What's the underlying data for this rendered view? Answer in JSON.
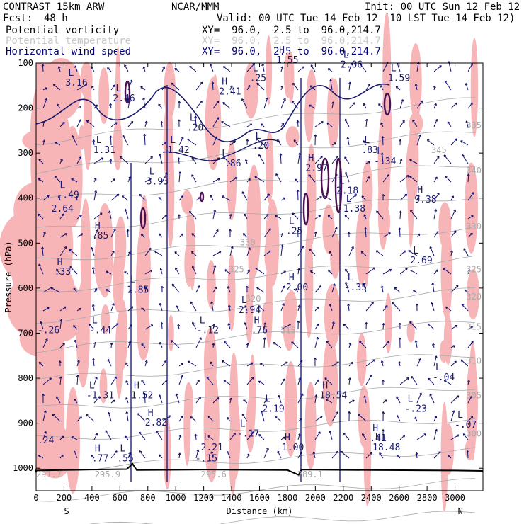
{
  "header": {
    "model": "CONTRAST 15km ARW",
    "org": "NCAR/MMM",
    "init": "Init: 00 UTC Sun 12 Feb 12",
    "fcst_label": "Fcst:",
    "fcst_value": "48 h",
    "valid": "Valid: 00 UTC Tue 14 Feb 12 (10 LST Tue 14 Feb 12)"
  },
  "fields": [
    {
      "name": "Potential vorticity",
      "xy": "XY=  96.0,  2.5 to  96.0,214.7",
      "color": "#000000"
    },
    {
      "name": "Potential temperature",
      "xy": "XY=  96.0,  2.5 to  96.0,214.7",
      "color": "#c8c8c8"
    },
    {
      "name": "Horizontal wind speed",
      "xy": "XY=  96.0,  2.5 to  96.0,214.7",
      "color": "#00007a"
    }
  ],
  "colors": {
    "pv_shade": "#f7b5b8",
    "wind": "#10106e",
    "theta": "#a8a8a8",
    "terrain": "#000000"
  },
  "chart_data": {
    "type": "cross-section",
    "title": "Potential vorticity / Potential temperature / Horizontal wind speed",
    "xlabel": "Distance (km)",
    "ylabel": "Pressure (hPa)",
    "xlim": [
      0,
      3200
    ],
    "ylim": [
      1050,
      100
    ],
    "x_ticks": [
      0,
      200,
      400,
      600,
      800,
      1000,
      1200,
      1400,
      1600,
      1800,
      2000,
      2200,
      2400,
      2600,
      2800,
      3000
    ],
    "y_ticks": [
      100,
      200,
      300,
      400,
      500,
      600,
      700,
      800,
      900,
      1000
    ],
    "x_left_label": "S",
    "x_right_label": "N",
    "theta_labels": [
      {
        "value": "345",
        "x": 2830,
        "p": 300
      },
      {
        "value": "340",
        "x": 3080,
        "p": 345
      },
      {
        "value": "335",
        "x": 3080,
        "p": 245
      },
      {
        "value": "330",
        "x": 3080,
        "p": 470
      },
      {
        "value": "330",
        "x": 1460,
        "p": 505
      },
      {
        "value": "325",
        "x": 3080,
        "p": 565
      },
      {
        "value": "325",
        "x": 1380,
        "p": 565
      },
      {
        "value": "320",
        "x": 3080,
        "p": 625
      },
      {
        "value": "320",
        "x": 1500,
        "p": 630
      },
      {
        "value": "315",
        "x": 3080,
        "p": 692
      },
      {
        "value": "315",
        "x": 1750,
        "p": 700
      },
      {
        "value": "310",
        "x": 3080,
        "p": 768
      },
      {
        "value": "305",
        "x": 3080,
        "p": 845
      },
      {
        "value": "300",
        "x": 3080,
        "p": 930
      },
      {
        "value": "295.9",
        "x": 420,
        "p": 1020
      },
      {
        "value": "295.6",
        "x": 1180,
        "p": 1020
      },
      {
        "value": "291.7",
        "x": 0,
        "p": 1020
      },
      {
        "value": "289.1",
        "x": 1870,
        "p": 1020
      }
    ],
    "extrema": [
      {
        "kind": "L",
        "value": "3.16",
        "x": 230,
        "p": 150
      },
      {
        "kind": "L",
        "value": "2.46",
        "x": 570,
        "p": 185
      },
      {
        "kind": "L",
        "value": "1.31",
        "x": 430,
        "p": 300
      },
      {
        "kind": "L",
        "value": "1.42",
        "x": 960,
        "p": 300
      },
      {
        "kind": "L",
        "value": ".20",
        "x": 1100,
        "p": 250
      },
      {
        "kind": "H",
        "value": "2.41",
        "x": 1330,
        "p": 170
      },
      {
        "kind": "L",
        "value": ".25",
        "x": 1550,
        "p": 140
      },
      {
        "kind": "L",
        "value": ".20",
        "x": 1570,
        "p": 290
      },
      {
        "kind": "L",
        "value": "-.86",
        "x": 1330,
        "p": 330
      },
      {
        "kind": "L",
        "value": "3.93",
        "x": 810,
        "p": 370
      },
      {
        "kind": "L",
        "value": "-.49",
        "x": 170,
        "p": 400
      },
      {
        "kind": "",
        "value": "2.64",
        "x": 130,
        "p": 430
      },
      {
        "kind": "H",
        "value": ".85",
        "x": 420,
        "p": 490
      },
      {
        "kind": "H",
        "value": ".33",
        "x": 150,
        "p": 570
      },
      {
        "kind": "L",
        "value": "1.85",
        "x": 670,
        "p": 610
      },
      {
        "kind": "H",
        "value": "2.97",
        "x": 1950,
        "p": 340
      },
      {
        "kind": "L",
        "value": "2.18",
        "x": 2170,
        "p": 390
      },
      {
        "kind": "L",
        "value": "1.38",
        "x": 2220,
        "p": 430
      },
      {
        "kind": "L",
        "value": ".25",
        "x": 1810,
        "p": 480
      },
      {
        "kind": "L",
        "value": ".83",
        "x": 2350,
        "p": 300
      },
      {
        "kind": "L",
        "value": "-.34",
        "x": 2440,
        "p": 325
      },
      {
        "kind": "H",
        "value": "9.38",
        "x": 2730,
        "p": 410
      },
      {
        "kind": "L",
        "value": "2.69",
        "x": 2700,
        "p": 545
      },
      {
        "kind": "H",
        "value": "2.00",
        "x": 1810,
        "p": 605
      },
      {
        "kind": "L",
        "value": "-.35",
        "x": 2230,
        "p": 605
      },
      {
        "kind": "L",
        "value": "2.94",
        "x": 1470,
        "p": 655
      },
      {
        "kind": "H",
        "value": ".76",
        "x": 1560,
        "p": 700
      },
      {
        "kind": "L",
        "value": "-.44",
        "x": 400,
        "p": 700
      },
      {
        "kind": "L",
        "value": "-.12",
        "x": 1170,
        "p": 700
      },
      {
        "kind": "",
        "value": "-.26",
        "x": 30,
        "p": 700
      },
      {
        "kind": "L",
        "value": "-1.31",
        "x": 380,
        "p": 845
      },
      {
        "kind": "H",
        "value": "1.52",
        "x": 700,
        "p": 845
      },
      {
        "kind": "H",
        "value": "18.54",
        "x": 2050,
        "p": 845
      },
      {
        "kind": "L",
        "value": "-.04",
        "x": 2860,
        "p": 805
      },
      {
        "kind": "L",
        "value": "2.19",
        "x": 1640,
        "p": 875
      },
      {
        "kind": "L",
        "value": "-.23",
        "x": 2660,
        "p": 875
      },
      {
        "kind": "H",
        "value": "2.82",
        "x": 800,
        "p": 905
      },
      {
        "kind": "L",
        "value": "-.17",
        "x": 1460,
        "p": 930
      },
      {
        "kind": "H",
        "value": "1.00",
        "x": 1780,
        "p": 960
      },
      {
        "kind": "H",
        "value": "18.48",
        "x": 2430,
        "p": 960
      },
      {
        "kind": "L",
        "value": "-.07",
        "x": 3060,
        "p": 910
      },
      {
        "kind": "H",
        "value": ".77",
        "x": 420,
        "p": 985
      },
      {
        "kind": "L",
        "value": ".55",
        "x": 600,
        "p": 985
      },
      {
        "kind": "L",
        "value": "2.21",
        "x": 1200,
        "p": 960
      },
      {
        "kind": "",
        "value": "-.15",
        "x": 1160,
        "p": 985
      },
      {
        "kind": "",
        "value": ".24",
        "x": 30,
        "p": 945
      },
      {
        "kind": "H",
        "value": ".41",
        "x": 2410,
        "p": 940
      },
      {
        "kind": "H",
        "value": "1.55",
        "x": 1740,
        "p": 100
      },
      {
        "kind": "L",
        "value": "2.06",
        "x": 2200,
        "p": 110
      },
      {
        "kind": "L",
        "value": "1.59",
        "x": 2540,
        "p": 140
      }
    ]
  }
}
